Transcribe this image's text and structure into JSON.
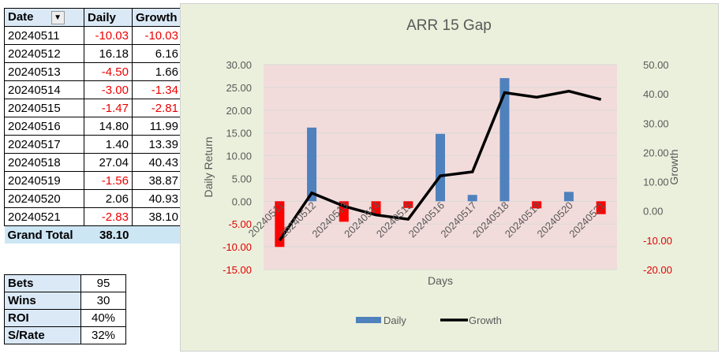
{
  "pivot": {
    "headers": [
      "Date",
      "Daily",
      "Growth"
    ],
    "rows": [
      {
        "date": "20240511",
        "daily": "-10.03",
        "growth": "-10.03"
      },
      {
        "date": "20240512",
        "daily": "16.18",
        "growth": "6.16"
      },
      {
        "date": "20240513",
        "daily": "-4.50",
        "growth": "1.66"
      },
      {
        "date": "20240514",
        "daily": "-3.00",
        "growth": "-1.34"
      },
      {
        "date": "20240515",
        "daily": "-1.47",
        "growth": "-2.81"
      },
      {
        "date": "20240516",
        "daily": "14.80",
        "growth": "11.99"
      },
      {
        "date": "20240517",
        "daily": "1.40",
        "growth": "13.39"
      },
      {
        "date": "20240518",
        "daily": "27.04",
        "growth": "40.43"
      },
      {
        "date": "20240519",
        "daily": "-1.56",
        "growth": "38.87"
      },
      {
        "date": "20240520",
        "daily": "2.06",
        "growth": "40.93"
      },
      {
        "date": "20240521",
        "daily": "-2.83",
        "growth": "38.10"
      }
    ],
    "grand_total_label": "Grand Total",
    "grand_total_value": "38.10"
  },
  "stats": [
    {
      "label": "Bets",
      "value": "95"
    },
    {
      "label": "Wins",
      "value": "30"
    },
    {
      "label": "ROI",
      "value": "40%"
    },
    {
      "label": "S/Rate",
      "value": "32%"
    }
  ],
  "colors": {
    "positive_bar": "#4f81bd",
    "negative_bar": "#ff0000",
    "line": "#000000",
    "plot_bg": "#f2dcdb",
    "chart_bg": "#ebf0dc",
    "negative_text": "#e00000"
  },
  "chart_data": {
    "type": "bar",
    "title": "ARR 15 Gap",
    "xlabel": "Days",
    "ylabel": "Daily Return",
    "y2label": "Growth",
    "categories": [
      "20240511",
      "20240512",
      "20240513",
      "20240514",
      "20240515",
      "20240516",
      "20240517",
      "20240518",
      "20240519",
      "20240520",
      "20240521"
    ],
    "series": [
      {
        "name": "Daily",
        "type": "bar",
        "axis": "left",
        "values": [
          -10.03,
          16.18,
          -4.5,
          -3.0,
          -1.47,
          14.8,
          1.4,
          27.04,
          -1.56,
          2.06,
          -2.83
        ]
      },
      {
        "name": "Growth",
        "type": "line",
        "axis": "right",
        "values": [
          -10.03,
          6.16,
          1.66,
          -1.34,
          -2.81,
          11.99,
          13.39,
          40.43,
          38.87,
          40.93,
          38.1
        ]
      }
    ],
    "ylim": [
      -15,
      30
    ],
    "y2lim": [
      -20,
      50
    ],
    "yticks": [
      "30.00",
      "25.00",
      "20.00",
      "15.00",
      "10.00",
      "5.00",
      "0.00",
      "-5.00",
      "-10.00",
      "-15.00"
    ],
    "y2ticks": [
      "50.00",
      "40.00",
      "30.00",
      "20.00",
      "10.00",
      "0.00",
      "-10.00",
      "-20.00"
    ],
    "legend": [
      "Daily",
      "Growth"
    ],
    "legend_position": "bottom",
    "grid": true
  }
}
